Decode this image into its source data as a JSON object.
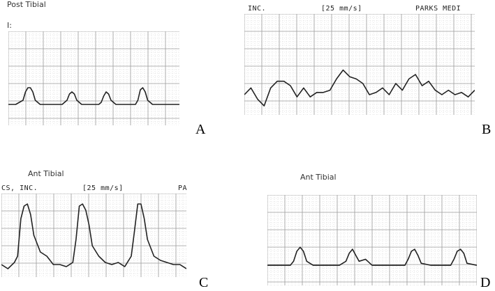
{
  "colors": {
    "grid_major": "#9a9a9a",
    "grid_minor": "#cfcfcf",
    "trace": "#222222"
  },
  "panels": [
    {
      "id": "A",
      "letter": "A",
      "caption": "Post Tibial",
      "channel_mark": "I:",
      "header_left": "",
      "header_center": "",
      "header_right": "",
      "waveform": "small periodic pulses on flat baseline",
      "trace": [
        [
          0,
          35
        ],
        [
          3,
          35
        ],
        [
          6,
          33
        ],
        [
          7,
          29
        ],
        [
          8,
          27
        ],
        [
          9,
          27
        ],
        [
          10,
          29
        ],
        [
          11,
          33
        ],
        [
          13,
          35
        ],
        [
          22,
          35
        ],
        [
          24,
          33
        ],
        [
          25,
          30
        ],
        [
          26,
          29
        ],
        [
          27,
          30
        ],
        [
          28,
          33
        ],
        [
          30,
          35
        ],
        [
          37,
          35
        ],
        [
          38,
          34
        ],
        [
          39,
          31
        ],
        [
          40,
          29
        ],
        [
          41,
          30
        ],
        [
          42,
          33
        ],
        [
          44,
          35
        ],
        [
          52,
          35
        ],
        [
          53,
          33
        ],
        [
          54,
          28
        ],
        [
          55,
          27
        ],
        [
          56,
          29
        ],
        [
          57,
          33
        ],
        [
          59,
          35
        ],
        [
          70,
          35
        ]
      ]
    },
    {
      "id": "B",
      "letter": "B",
      "caption": "",
      "channel_mark": "",
      "header_left": "INC.",
      "header_center": "[25 mm/s]",
      "header_right": "PARKS MEDI",
      "waveform": "low amplitude irregular waveform",
      "trace": [
        [
          0,
          36
        ],
        [
          2,
          33
        ],
        [
          4,
          38
        ],
        [
          6,
          41
        ],
        [
          8,
          33
        ],
        [
          10,
          30
        ],
        [
          12,
          30
        ],
        [
          14,
          32
        ],
        [
          16,
          37
        ],
        [
          18,
          33
        ],
        [
          20,
          37
        ],
        [
          22,
          35
        ],
        [
          24,
          35
        ],
        [
          26,
          34
        ],
        [
          28,
          29
        ],
        [
          30,
          25
        ],
        [
          32,
          28
        ],
        [
          34,
          29
        ],
        [
          36,
          31
        ],
        [
          38,
          36
        ],
        [
          40,
          35
        ],
        [
          42,
          33
        ],
        [
          44,
          36
        ],
        [
          46,
          31
        ],
        [
          48,
          34
        ],
        [
          50,
          29
        ],
        [
          52,
          27
        ],
        [
          54,
          32
        ],
        [
          56,
          30
        ],
        [
          58,
          34
        ],
        [
          60,
          36
        ],
        [
          62,
          34
        ],
        [
          64,
          36
        ],
        [
          66,
          35
        ],
        [
          68,
          37
        ],
        [
          70,
          34
        ]
      ]
    },
    {
      "id": "C",
      "letter": "C",
      "caption": "Ant Tibial",
      "channel_mark": "",
      "header_left": "CS, INC.",
      "header_center": "[25 mm/s]",
      "header_right": "PA",
      "waveform": "tall periodic pulses with sharp upstroke",
      "trace": [
        [
          0,
          34
        ],
        [
          2,
          36
        ],
        [
          4,
          33
        ],
        [
          5,
          30
        ],
        [
          6,
          12
        ],
        [
          7,
          6
        ],
        [
          8,
          5
        ],
        [
          9,
          10
        ],
        [
          10,
          20
        ],
        [
          12,
          28
        ],
        [
          14,
          30
        ],
        [
          16,
          34
        ],
        [
          18,
          34
        ],
        [
          20,
          35
        ],
        [
          22,
          33
        ],
        [
          23,
          22
        ],
        [
          24,
          6
        ],
        [
          25,
          5
        ],
        [
          26,
          8
        ],
        [
          27,
          15
        ],
        [
          28,
          25
        ],
        [
          30,
          30
        ],
        [
          32,
          33
        ],
        [
          34,
          34
        ],
        [
          36,
          33
        ],
        [
          38,
          35
        ],
        [
          40,
          30
        ],
        [
          41,
          18
        ],
        [
          42,
          5
        ],
        [
          43,
          5
        ],
        [
          44,
          12
        ],
        [
          45,
          22
        ],
        [
          47,
          30
        ],
        [
          49,
          32
        ],
        [
          51,
          33
        ],
        [
          53,
          34
        ],
        [
          55,
          34
        ],
        [
          57,
          36
        ]
      ]
    },
    {
      "id": "D",
      "letter": "D",
      "caption": "Ant Tibial",
      "channel_mark": "",
      "header_left": "",
      "header_center": "",
      "header_right": "",
      "waveform": "moderate periodic pulses with dicrotic notch",
      "trace": [
        [
          0,
          35
        ],
        [
          3,
          35
        ],
        [
          7,
          35
        ],
        [
          8,
          33
        ],
        [
          9,
          28
        ],
        [
          10,
          26
        ],
        [
          11,
          28
        ],
        [
          12,
          33
        ],
        [
          14,
          35
        ],
        [
          22,
          35
        ],
        [
          24,
          33
        ],
        [
          25,
          29
        ],
        [
          26,
          27
        ],
        [
          27,
          30
        ],
        [
          28,
          33
        ],
        [
          30,
          32
        ],
        [
          32,
          35
        ],
        [
          42,
          35
        ],
        [
          43,
          32
        ],
        [
          44,
          28
        ],
        [
          45,
          27
        ],
        [
          46,
          30
        ],
        [
          47,
          34
        ],
        [
          50,
          35
        ],
        [
          56,
          35
        ],
        [
          57,
          32
        ],
        [
          58,
          28
        ],
        [
          59,
          27
        ],
        [
          60,
          29
        ],
        [
          61,
          34
        ],
        [
          64,
          35
        ]
      ]
    }
  ]
}
